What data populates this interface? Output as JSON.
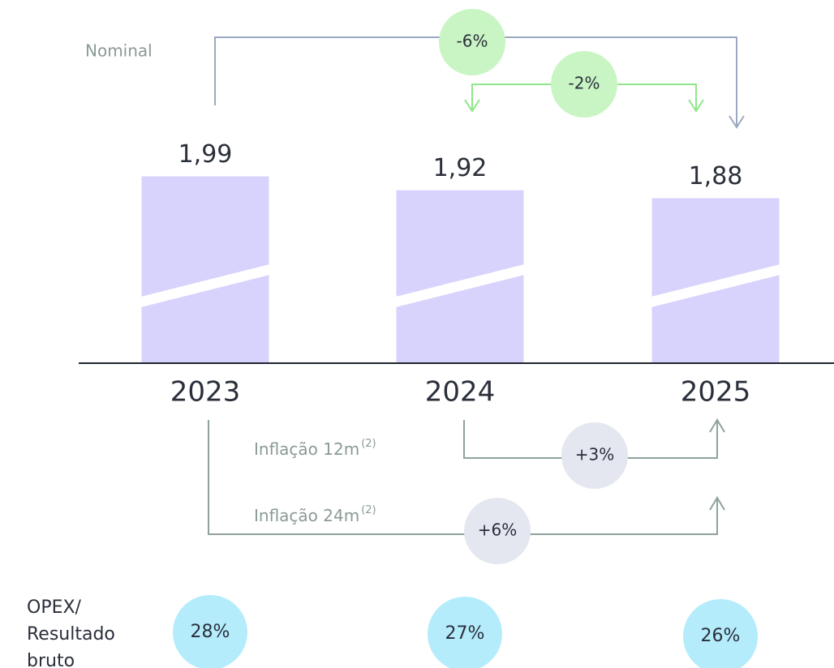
{
  "chart_data": {
    "type": "bar",
    "categories": [
      "2023",
      "2024",
      "2025"
    ],
    "values": [
      1.99,
      1.92,
      1.88
    ],
    "value_labels": [
      "1,99",
      "1,92",
      "1,88"
    ],
    "color": "#d8d3fd",
    "ylim": [
      1.05,
      2.2
    ],
    "nominal": {
      "label": "Nominal",
      "color": "#c9f5c4",
      "changes": [
        {
          "value": -6,
          "label": "-6%"
        },
        {
          "value": -2,
          "label": "-2%"
        }
      ]
    },
    "inflation": [
      {
        "label": "Inflação 12m",
        "note": "(2)",
        "value": 3,
        "value_label": "+3%"
      },
      {
        "label": "Inflação 24m",
        "note": "(2)",
        "value": 6,
        "value_label": "+6%"
      }
    ],
    "inflation_color": "#e4e7ef",
    "opex": {
      "label_lines": [
        "OPEX/",
        "Resultado",
        "bruto"
      ],
      "values": [
        28,
        27,
        26
      ],
      "value_labels": [
        "28%",
        "27%",
        "26%"
      ],
      "color": "#b4ecfb"
    }
  }
}
